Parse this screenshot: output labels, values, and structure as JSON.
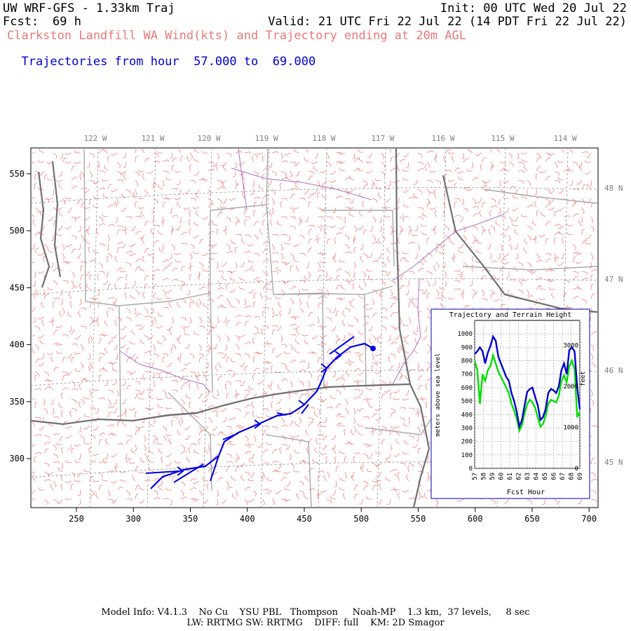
{
  "header": {
    "model_title": "UW WRF-GFS - 1.33km Traj",
    "init": "Init: 00 UTC Wed 20 Jul 22",
    "fcst_label": "Fcst:",
    "fcst_value": "69 h",
    "valid": "Valid: 21 UTC Fri 22 Jul 22 (14 PDT Fri 22 Jul 22)",
    "subtitle": "Clarkston Landfill WA Wind(kts) and Trajectory ending at 20m AGL",
    "traj_prefix": "Trajectories from hour",
    "traj_start": "57.000",
    "traj_to": "to",
    "traj_end": "69.000"
  },
  "map": {
    "lon_labels": [
      "122 W",
      "121 W",
      "120 W",
      "119 W",
      "118 W",
      "117 W",
      "116 W",
      "115 W",
      "114 W"
    ],
    "lat_labels": [
      "48 N",
      "47 N",
      "46 N",
      "45 N"
    ],
    "x_ticks": [
      "250",
      "300",
      "350",
      "400",
      "450",
      "500",
      "550",
      "600",
      "650",
      "700"
    ],
    "y_ticks": [
      "550",
      "500",
      "450",
      "400",
      "350",
      "300"
    ],
    "colors": {
      "wind_barbs": "#f08080",
      "borders": "#a8a8a8",
      "rivers": "#b070c0",
      "trajectory": "#0000e0",
      "coast": "#707070"
    }
  },
  "inset": {
    "title": "Trajectory and Terrain Height",
    "xlabel": "Fcst Hour",
    "ylabel_left": "meters above sea level",
    "ylabel_right": "feet",
    "x_ticks": [
      "57",
      "58",
      "59",
      "60",
      "61",
      "62",
      "63",
      "64",
      "65",
      "66",
      "67",
      "68",
      "69"
    ],
    "y_ticks_left": [
      "0",
      "100",
      "200",
      "300",
      "400",
      "500",
      "600",
      "700",
      "800",
      "900",
      "1000"
    ],
    "y_ticks_right": [
      "0",
      "1000",
      "2000",
      "3000"
    ],
    "colors": {
      "trajectory": "#0000cc",
      "terrain": "#00dd00"
    }
  },
  "chart_data": {
    "type": "line",
    "title": "Trajectory and Terrain Height",
    "xlabel": "Fcst Hour",
    "ylabel": "meters above sea level",
    "xlim": [
      57,
      69
    ],
    "ylim": [
      0,
      1100
    ],
    "series": [
      {
        "x": [
          57.0,
          57.3,
          57.6,
          57.9,
          58.2,
          58.5,
          58.8,
          59.1,
          59.4,
          59.7,
          60.0,
          60.3,
          60.6,
          60.9,
          61.2,
          61.5,
          61.8,
          62.1,
          62.4,
          62.7,
          63.0,
          63.3,
          63.6,
          63.9,
          64.2,
          64.5,
          64.8,
          65.1,
          65.4,
          65.7,
          66.0,
          66.3,
          66.6,
          66.9,
          67.2,
          67.5,
          67.8,
          68.1,
          68.4,
          68.7,
          69.0
        ],
        "values": [
          850,
          870,
          900,
          870,
          780,
          860,
          910,
          980,
          950,
          830,
          780,
          730,
          680,
          650,
          560,
          500,
          420,
          310,
          360,
          470,
          570,
          590,
          600,
          530,
          470,
          360,
          380,
          440,
          560,
          590,
          580,
          560,
          610,
          730,
          780,
          700,
          880,
          900,
          870,
          600,
          440
        ]
      },
      {
        "x": [
          57.0,
          57.3,
          57.6,
          57.9,
          58.2,
          58.5,
          58.8,
          59.1,
          59.4,
          59.7,
          60.0,
          60.3,
          60.6,
          60.9,
          61.2,
          61.5,
          61.8,
          62.1,
          62.4,
          62.7,
          63.0,
          63.3,
          63.6,
          63.9,
          64.2,
          64.5,
          64.8,
          65.1,
          65.4,
          65.7,
          66.0,
          66.3,
          66.6,
          66.9,
          67.2,
          67.5,
          67.8,
          68.1,
          68.4,
          68.7,
          69.0
        ],
        "values": [
          800,
          730,
          480,
          700,
          650,
          730,
          760,
          840,
          780,
          720,
          680,
          640,
          600,
          560,
          480,
          430,
          370,
          280,
          320,
          410,
          480,
          510,
          490,
          450,
          380,
          310,
          330,
          390,
          480,
          510,
          500,
          490,
          540,
          650,
          690,
          640,
          760,
          800,
          740,
          380,
          420
        ]
      }
    ]
  },
  "footer": {
    "line1": "Model Info: V4.1.3    No Cu    YSU PBL   Thompson     Noah-MP    1.3 km,  37 levels,     8 sec",
    "line2": "LW: RRTMG SW: RRTMG    DIFF: full    KM: 2D Smagor"
  }
}
